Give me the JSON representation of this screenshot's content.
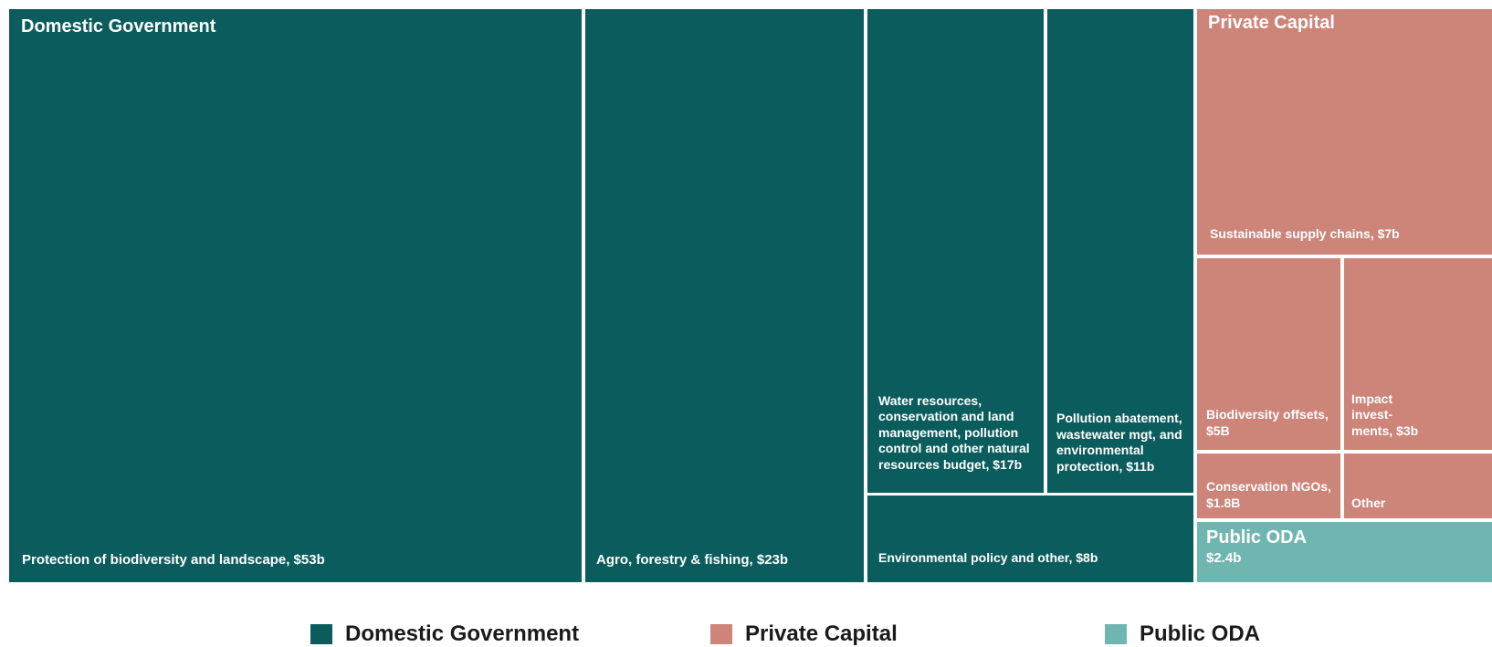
{
  "chart_data": {
    "type": "treemap",
    "groups": [
      {
        "name": "Domestic Government",
        "color": "#0b5c5c",
        "items": [
          {
            "label": "Protection of biodiversity and landscape, $53b",
            "value": 53
          },
          {
            "label": "Agro, forestry & fishing, $23b",
            "value": 23
          },
          {
            "label": "Water resources, conservation and land management, pollution control and other natural resources budget, $17b",
            "value": 17
          },
          {
            "label": "Pollution abatement, wastewater mgt, and environmental protection, $11b",
            "value": 11
          },
          {
            "label": "Environmental policy and other, $8b",
            "value": 8
          }
        ]
      },
      {
        "name": "Private Capital",
        "color": "#cd8479",
        "items": [
          {
            "label": "Sustainable supply chains, $7b",
            "value": 7
          },
          {
            "label": "Biodiversity offsets, $5B",
            "value": 5
          },
          {
            "label": "Impact invest- ments, $3b",
            "value": 3
          },
          {
            "label": "Conservation NGOs, $1.8B",
            "value": 1.8
          },
          {
            "label": "Other",
            "value": null
          }
        ]
      },
      {
        "name": "Public ODA",
        "color": "#6fb6b1",
        "items": [
          {
            "label": "$2.4b",
            "value": 2.4
          }
        ]
      }
    ],
    "legend": {
      "position": "bottom",
      "entries": [
        "Domestic Government",
        "Private Capital",
        "Public ODA"
      ]
    }
  }
}
